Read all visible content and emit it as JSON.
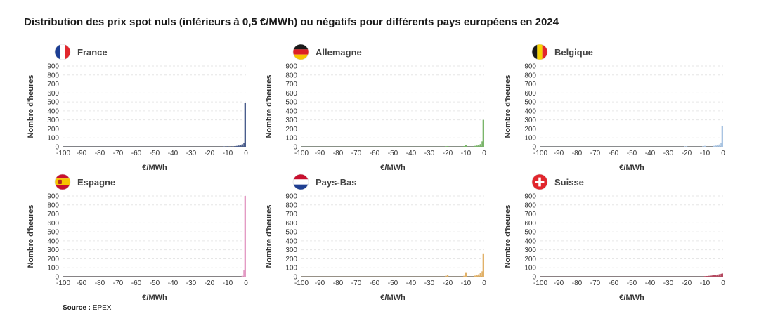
{
  "title": "Distribution des prix spot nuls (inférieurs à 0,5 €/MWh) ou négatifs pour différents pays européens en 2024",
  "source": {
    "label": "Source :",
    "value": "EPEX"
  },
  "chart_data": [
    {
      "type": "bar",
      "country": "France",
      "flag": "france-flag-icon",
      "color": "#4a5d8c",
      "xlabel": "€/MWh",
      "ylabel": "Nombre d'heures",
      "xlim": [
        -100,
        0
      ],
      "ylim": [
        0,
        900
      ],
      "xticks": [
        -100,
        -90,
        -80,
        -70,
        -60,
        -50,
        -40,
        -30,
        -20,
        -10,
        0
      ],
      "yticks": [
        0,
        100,
        200,
        300,
        400,
        500,
        600,
        700,
        800,
        900
      ],
      "x": [
        -12,
        -10,
        -8,
        -6,
        -5,
        -4,
        -3,
        -2,
        -1,
        0
      ],
      "values": [
        4,
        6,
        6,
        8,
        10,
        14,
        20,
        28,
        40,
        490
      ],
      "baseline": 2
    },
    {
      "type": "bar",
      "country": "Allemagne",
      "flag": "germany-flag-icon",
      "color": "#7ab56a",
      "xlabel": "€/MWh",
      "ylabel": "Nombre d'heures",
      "xlim": [
        -100,
        0
      ],
      "ylim": [
        0,
        900
      ],
      "xticks": [
        -100,
        -90,
        -80,
        -70,
        -60,
        -50,
        -40,
        -30,
        -20,
        -10,
        0
      ],
      "yticks": [
        0,
        100,
        200,
        300,
        400,
        500,
        600,
        700,
        800,
        900
      ],
      "x": [
        -21,
        -20,
        -11,
        -10,
        -5,
        -4,
        -3,
        -2,
        -1,
        0
      ],
      "values": [
        6,
        8,
        8,
        22,
        10,
        14,
        22,
        30,
        60,
        300
      ],
      "baseline": 3
    },
    {
      "type": "bar",
      "country": "Belgique",
      "flag": "belgium-flag-icon",
      "color": "#a9c4e2",
      "xlabel": "€/MWh",
      "ylabel": "Nombre d'heures",
      "xlim": [
        -100,
        0
      ],
      "ylim": [
        0,
        900
      ],
      "xticks": [
        -100,
        -90,
        -80,
        -70,
        -60,
        -50,
        -40,
        -30,
        -20,
        -10,
        0
      ],
      "yticks": [
        0,
        100,
        200,
        300,
        400,
        500,
        600,
        700,
        800,
        900
      ],
      "x": [
        -21,
        -20,
        -11,
        -10,
        -5,
        -4,
        -3,
        -2,
        -1,
        0
      ],
      "values": [
        5,
        6,
        6,
        10,
        10,
        14,
        18,
        26,
        40,
        235
      ],
      "baseline": 2
    },
    {
      "type": "bar",
      "country": "Espagne",
      "flag": "spain-flag-icon",
      "color": "#e39bc4",
      "xlabel": "€/MWh",
      "ylabel": "Nombre d'heures",
      "xlim": [
        -100,
        0
      ],
      "ylim": [
        0,
        900
      ],
      "xticks": [
        -100,
        -90,
        -80,
        -70,
        -60,
        -50,
        -40,
        -30,
        -20,
        -10,
        0
      ],
      "yticks": [
        0,
        100,
        200,
        300,
        400,
        500,
        600,
        700,
        800,
        900
      ],
      "x": [
        -2,
        -1,
        0
      ],
      "values": [
        10,
        70,
        935
      ],
      "baseline": 1
    },
    {
      "type": "bar",
      "country": "Pays-Bas",
      "flag": "netherlands-flag-icon",
      "color": "#e1b168",
      "xlabel": "€/MWh",
      "ylabel": "Nombre d'heures",
      "xlim": [
        -100,
        0
      ],
      "ylim": [
        0,
        900
      ],
      "xticks": [
        -100,
        -90,
        -80,
        -70,
        -60,
        -50,
        -40,
        -30,
        -20,
        -10,
        0
      ],
      "yticks": [
        0,
        100,
        200,
        300,
        400,
        500,
        600,
        700,
        800,
        900
      ],
      "x": [
        -21,
        -20,
        -11,
        -10,
        -5,
        -4,
        -3,
        -2,
        -1,
        0
      ],
      "values": [
        10,
        16,
        10,
        50,
        12,
        18,
        26,
        40,
        60,
        260
      ],
      "baseline": 3
    },
    {
      "type": "bar",
      "country": "Suisse",
      "flag": "switzerland-flag-icon",
      "color": "#b5485f",
      "xlabel": "€/MWh",
      "ylabel": "Nombre d'heures",
      "xlim": [
        -100,
        0
      ],
      "ylim": [
        0,
        900
      ],
      "xticks": [
        -100,
        -90,
        -80,
        -70,
        -60,
        -50,
        -40,
        -30,
        -20,
        -10,
        0
      ],
      "yticks": [
        0,
        100,
        200,
        300,
        400,
        500,
        600,
        700,
        800,
        900
      ],
      "x": [
        -10,
        -9,
        -8,
        -7,
        -6,
        -5,
        -4,
        -3,
        -2,
        -1,
        0
      ],
      "values": [
        6,
        8,
        10,
        12,
        14,
        16,
        20,
        24,
        28,
        32,
        36
      ],
      "baseline": 2
    }
  ]
}
